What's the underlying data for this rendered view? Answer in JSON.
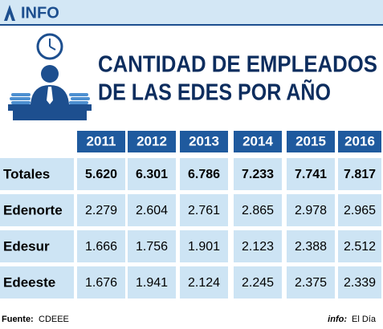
{
  "header": {
    "title": "INFO"
  },
  "title_lines": [
    "CANTIDAD DE EMPLEADOS",
    "DE LAS EDES POR AÑO"
  ],
  "table": {
    "columns": [
      "2011",
      "2012",
      "2013",
      "2014",
      "2015",
      "2016"
    ],
    "rows": [
      [
        "Totales",
        "5.620",
        "6.301",
        "6.786",
        "7.233",
        "7.741",
        "7.817"
      ],
      [
        "Edenorte",
        "2.279",
        "2.604",
        "2.761",
        "2.865",
        "2.978",
        "2.965"
      ],
      [
        "Edesur",
        "1.666",
        "1.756",
        "1.901",
        "2.123",
        "2.388",
        "2.512"
      ],
      [
        "Edeeste",
        "1.676",
        "1.941",
        "2.124",
        "2.245",
        "2.375",
        "2.339"
      ]
    ]
  },
  "footer": {
    "source_label": "Fuente:",
    "source": "CDEEE",
    "credit_label": "info:",
    "credit": "El Día"
  }
}
